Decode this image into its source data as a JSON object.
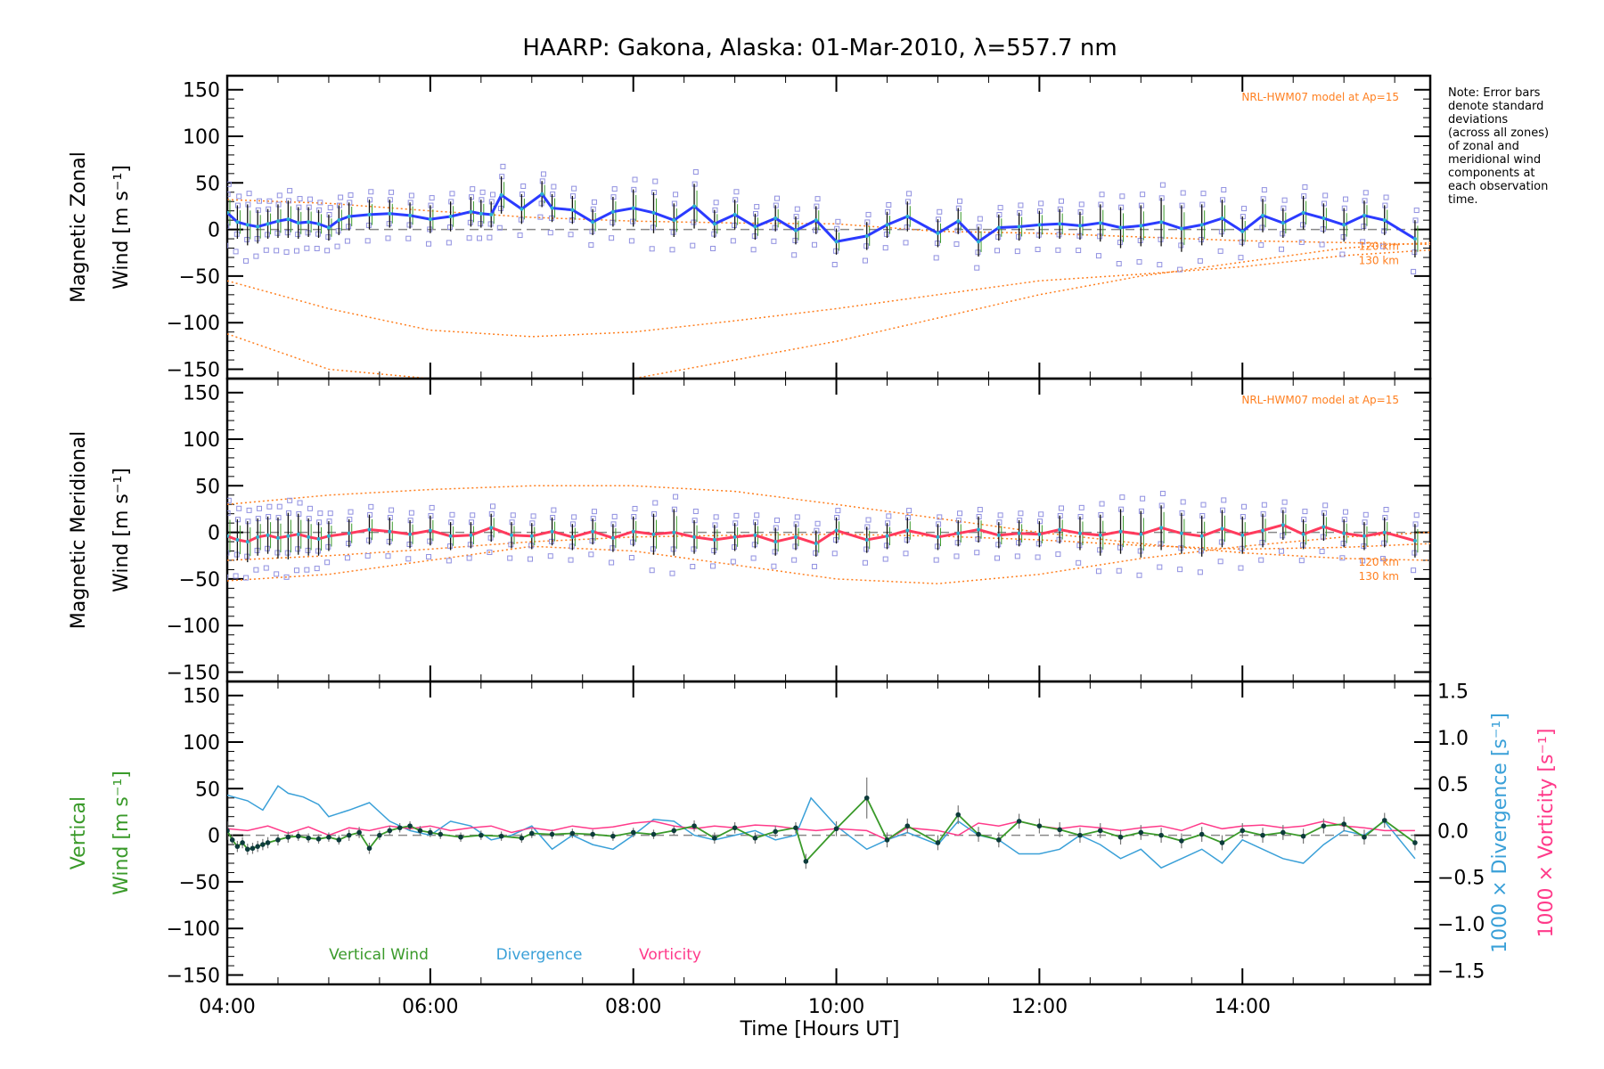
{
  "title": "HAARP: Gakona,  Alaska: 01-Mar-2010, λ=557.7 nm",
  "note": [
    "Note: Error bars",
    "denote standard",
    "deviations",
    "(across all zones)",
    "of zonal and",
    "meridional wind",
    "components at",
    "each observation",
    "time."
  ],
  "x_label": "Time [Hours UT]",
  "x_ticks": [
    "04:00",
    "06:00",
    "08:00",
    "10:00",
    "12:00",
    "14:00"
  ],
  "colors": {
    "zonal": "#2b3bff",
    "meridional": "#ff3a5c",
    "vertical": "#3a9a2a",
    "divergence": "#3aa0d8",
    "vorticity": "#ff3a8a",
    "model": "#ff7f1f",
    "zone": "#9090e0"
  },
  "chart_data": [
    {
      "type": "line",
      "ylabel_line1": "Magnetic Zonal",
      "ylabel_line2": "Wind [m s⁻¹]",
      "ylim": [
        -160,
        165
      ],
      "y_ticks": [
        150,
        100,
        50,
        0,
        -50,
        -100,
        -150
      ],
      "model_label": "NRL-HWM07 model at Ap=15",
      "model_altitudes": [
        "120 km",
        "130 km"
      ],
      "x": [
        4.0,
        4.1,
        4.2,
        4.3,
        4.4,
        4.5,
        4.6,
        4.7,
        4.8,
        4.9,
        5.0,
        5.1,
        5.2,
        5.4,
        5.6,
        5.8,
        6.0,
        6.2,
        6.4,
        6.5,
        6.6,
        6.7,
        6.9,
        7.1,
        7.2,
        7.4,
        7.6,
        7.8,
        8.0,
        8.2,
        8.4,
        8.6,
        8.8,
        9.0,
        9.2,
        9.4,
        9.6,
        9.8,
        10.0,
        10.3,
        10.5,
        10.7,
        11.0,
        11.2,
        11.4,
        11.6,
        11.8,
        12.0,
        12.2,
        12.4,
        12.6,
        12.8,
        13.0,
        13.2,
        13.4,
        13.6,
        13.8,
        14.0,
        14.2,
        14.4,
        14.6,
        14.8,
        15.0,
        15.2,
        15.4,
        15.7
      ],
      "values": [
        18,
        8,
        5,
        3,
        6,
        9,
        11,
        7,
        8,
        6,
        2,
        10,
        14,
        16,
        17,
        15,
        11,
        14,
        19,
        17,
        16,
        37,
        22,
        38,
        23,
        21,
        8,
        19,
        23,
        18,
        10,
        25,
        6,
        16,
        3,
        12,
        -1,
        10,
        -13,
        -7,
        5,
        14,
        -4,
        9,
        -13,
        2,
        3,
        5,
        6,
        4,
        7,
        2,
        4,
        8,
        1,
        5,
        12,
        -2,
        15,
        7,
        18,
        12,
        5,
        15,
        10,
        -10
      ],
      "error_bars": [
        20,
        18,
        22,
        18,
        16,
        18,
        20,
        17,
        16,
        15,
        14,
        16,
        15,
        16,
        15,
        14,
        15,
        16,
        16,
        15,
        14,
        20,
        16,
        14,
        15,
        15,
        14,
        16,
        20,
        22,
        18,
        24,
        15,
        16,
        14,
        14,
        15,
        15,
        14,
        15,
        14,
        16,
        15,
        14,
        16,
        14,
        15,
        15,
        16,
        15,
        20,
        22,
        22,
        26,
        25,
        22,
        20,
        16,
        18,
        16,
        18,
        16,
        18,
        16,
        16,
        20
      ],
      "model_120km": {
        "x": [
          4.0,
          5.0,
          6.0,
          7.0,
          8.0,
          9.0,
          10.0,
          11.0,
          12.0,
          13.0,
          14.0,
          15.0,
          15.85
        ],
        "values": [
          32,
          28,
          20,
          13,
          9,
          7,
          6,
          -2,
          -4,
          -8,
          -12,
          -14,
          -16
        ]
      },
      "model_130km": {
        "x": [
          4.0,
          5.0,
          6.0,
          7.0,
          8.0,
          9.0,
          10.0,
          11.0,
          12.0,
          13.0,
          14.0,
          15.0,
          15.85
        ],
        "values": [
          -55,
          -85,
          -108,
          -115,
          -110,
          -98,
          -85,
          -70,
          -55,
          -48,
          -40,
          -28,
          -22
        ]
      },
      "model_extra": {
        "x": [
          4.0,
          5.0,
          6.0,
          7.0,
          8.0,
          9.0,
          10.0,
          11.0,
          12.0,
          13.0,
          14.0,
          15.0,
          15.85
        ],
        "values": [
          -112,
          -150,
          -172,
          -175,
          -160,
          -140,
          -120,
          -95,
          -70,
          -50,
          -35,
          -20,
          -14
        ]
      }
    },
    {
      "type": "line",
      "ylabel_line1": "Magnetic Meridional",
      "ylabel_line2": "Wind [m s⁻¹]",
      "ylim": [
        -160,
        165
      ],
      "y_ticks": [
        150,
        100,
        50,
        0,
        -50,
        -100,
        -150
      ],
      "model_label": "NRL-HWM07 model at Ap=15",
      "model_altitudes": [
        "120 km",
        "130 km"
      ],
      "x": [
        4.0,
        4.1,
        4.2,
        4.3,
        4.4,
        4.5,
        4.6,
        4.7,
        4.8,
        4.9,
        5.0,
        5.2,
        5.4,
        5.6,
        5.8,
        6.0,
        6.2,
        6.4,
        6.6,
        6.8,
        7.0,
        7.2,
        7.4,
        7.6,
        7.8,
        8.0,
        8.2,
        8.4,
        8.6,
        8.8,
        9.0,
        9.2,
        9.4,
        9.6,
        9.8,
        10.0,
        10.3,
        10.5,
        10.7,
        11.0,
        11.2,
        11.4,
        11.6,
        11.8,
        12.0,
        12.2,
        12.4,
        12.6,
        12.8,
        13.0,
        13.2,
        13.4,
        13.6,
        13.8,
        14.0,
        14.2,
        14.4,
        14.6,
        14.8,
        15.0,
        15.2,
        15.4,
        15.7
      ],
      "values": [
        -4,
        -8,
        -10,
        -5,
        -3,
        -6,
        -4,
        -2,
        -5,
        -7,
        -4,
        -1,
        3,
        1,
        -2,
        2,
        -4,
        -3,
        5,
        -3,
        -4,
        1,
        -5,
        1,
        -6,
        1,
        -2,
        0,
        -5,
        -8,
        -5,
        -3,
        -10,
        -5,
        -12,
        2,
        -8,
        -4,
        2,
        -5,
        -1,
        3,
        -3,
        -1,
        -2,
        3,
        -1,
        -3,
        1,
        -2,
        5,
        -1,
        -4,
        4,
        -3,
        2,
        8,
        -2,
        6,
        -1,
        -4,
        0,
        -9
      ],
      "error_bars": [
        25,
        22,
        22,
        20,
        20,
        22,
        25,
        22,
        20,
        18,
        16,
        15,
        16,
        15,
        15,
        16,
        15,
        14,
        15,
        14,
        14,
        15,
        14,
        14,
        15,
        16,
        22,
        25,
        18,
        16,
        15,
        14,
        15,
        14,
        14,
        14,
        14,
        14,
        14,
        14,
        14,
        14,
        14,
        14,
        14,
        15,
        18,
        22,
        24,
        25,
        24,
        22,
        22,
        20,
        20,
        18,
        16,
        16,
        15,
        15,
        15,
        16,
        18
      ],
      "model_120km": {
        "x": [
          4.0,
          5.0,
          6.0,
          7.0,
          8.0,
          9.0,
          10.0,
          11.0,
          12.0,
          13.0,
          14.0,
          15.0,
          15.85
        ],
        "values": [
          30,
          40,
          46,
          50,
          50,
          44,
          30,
          15,
          0,
          -12,
          -22,
          -28,
          -30
        ]
      },
      "model_130km": {
        "x": [
          4.0,
          5.0,
          6.0,
          7.0,
          8.0,
          9.0,
          10.0,
          11.0,
          12.0,
          13.0,
          14.0,
          15.0,
          15.85
        ],
        "values": [
          -52,
          -45,
          -30,
          -15,
          -20,
          -35,
          -50,
          -55,
          -45,
          -28,
          -15,
          -5,
          0
        ]
      },
      "model_extra": {
        "x": [
          4.0,
          5.0,
          6.0,
          7.0,
          8.0,
          9.0,
          10.0,
          11.0,
          12.0,
          13.0,
          14.0,
          15.0,
          15.85
        ],
        "values": [
          -30,
          -25,
          -18,
          -10,
          -5,
          -3,
          -2,
          -4,
          -8,
          -14,
          -18,
          -16,
          -12
        ]
      }
    },
    {
      "type": "line",
      "ylabel_line1": "Vertical",
      "ylabel_line2": "Wind [m s⁻¹]",
      "ylim": [
        -160,
        165
      ],
      "y_ticks": [
        150,
        100,
        50,
        0,
        -50,
        -100,
        -150
      ],
      "y2_ticks": [
        1.5,
        1.0,
        0.5,
        0.0,
        -0.5,
        -1.0,
        -1.5
      ],
      "y2_label_divergence": "1000 × Divergence [s⁻¹]",
      "y2_label_vorticity": "1000 × Vorticity [s⁻¹]",
      "legend": [
        "Vertical Wind",
        "Divergence",
        "Vorticity"
      ],
      "vertical": {
        "x": [
          4.0,
          4.05,
          4.1,
          4.15,
          4.2,
          4.25,
          4.3,
          4.35,
          4.4,
          4.5,
          4.6,
          4.7,
          4.8,
          4.9,
          5.0,
          5.1,
          5.2,
          5.3,
          5.4,
          5.5,
          5.6,
          5.7,
          5.8,
          5.9,
          6.0,
          6.1,
          6.3,
          6.5,
          6.7,
          6.9,
          7.0,
          7.2,
          7.4,
          7.6,
          7.8,
          8.0,
          8.2,
          8.4,
          8.6,
          8.8,
          9.0,
          9.2,
          9.4,
          9.6,
          9.7,
          10.0,
          10.3,
          10.5,
          10.7,
          11.0,
          11.2,
          11.4,
          11.6,
          11.8,
          12.0,
          12.2,
          12.4,
          12.6,
          12.8,
          13.0,
          13.2,
          13.4,
          13.6,
          13.8,
          14.0,
          14.2,
          14.4,
          14.6,
          14.8,
          15.0,
          15.2,
          15.4,
          15.7
        ],
        "values": [
          5,
          -5,
          -12,
          -8,
          -15,
          -14,
          -12,
          -10,
          -8,
          -5,
          -2,
          -1,
          -3,
          -4,
          -2,
          -5,
          0,
          3,
          -14,
          0,
          5,
          8,
          10,
          5,
          3,
          1,
          -2,
          0,
          -1,
          -3,
          2,
          1,
          2,
          1,
          -1,
          3,
          1,
          5,
          10,
          -3,
          8,
          -3,
          4,
          8,
          -28,
          7,
          40,
          -5,
          10,
          -8,
          22,
          1,
          -5,
          15,
          10,
          6,
          0,
          5,
          -2,
          3,
          0,
          -6,
          1,
          -8,
          5,
          0,
          3,
          -1,
          10,
          12,
          -2,
          16,
          -8
        ],
        "error_bars": [
          10,
          6,
          6,
          6,
          6,
          6,
          6,
          6,
          6,
          6,
          6,
          5,
          5,
          5,
          5,
          5,
          6,
          6,
          6,
          5,
          5,
          5,
          5,
          5,
          5,
          5,
          5,
          5,
          5,
          5,
          5,
          5,
          5,
          5,
          5,
          5,
          5,
          5,
          6,
          6,
          6,
          6,
          6,
          6,
          8,
          8,
          22,
          8,
          8,
          8,
          10,
          8,
          8,
          8,
          8,
          8,
          8,
          8,
          8,
          8,
          8,
          8,
          8,
          8,
          8,
          8,
          8,
          8,
          8,
          8,
          8,
          8,
          8
        ]
      },
      "divergence": {
        "x": [
          4.0,
          4.1,
          4.2,
          4.35,
          4.5,
          4.6,
          4.75,
          4.9,
          5.0,
          5.2,
          5.4,
          5.6,
          5.8,
          6.0,
          6.2,
          6.4,
          6.6,
          6.8,
          7.0,
          7.2,
          7.4,
          7.6,
          7.8,
          8.0,
          8.2,
          8.4,
          8.6,
          8.8,
          9.0,
          9.2,
          9.4,
          9.6,
          9.75,
          10.0,
          10.3,
          10.5,
          10.7,
          11.0,
          11.2,
          11.4,
          11.6,
          11.8,
          12.0,
          12.2,
          12.4,
          12.6,
          12.8,
          13.0,
          13.2,
          13.4,
          13.6,
          13.8,
          14.0,
          14.2,
          14.4,
          14.6,
          14.8,
          15.0,
          15.2,
          15.4,
          15.7
        ],
        "values": [
          0.38,
          0.35,
          0.32,
          0.22,
          0.48,
          0.4,
          0.36,
          0.28,
          0.15,
          0.22,
          0.3,
          0.1,
          0.0,
          -0.05,
          0.1,
          0.05,
          -0.1,
          -0.05,
          0.05,
          -0.2,
          -0.05,
          -0.15,
          -0.2,
          -0.05,
          0.12,
          0.1,
          -0.05,
          -0.1,
          -0.05,
          0.0,
          -0.1,
          -0.05,
          0.35,
          0.05,
          -0.2,
          -0.1,
          -0.02,
          -0.15,
          0.1,
          -0.05,
          -0.1,
          -0.25,
          -0.25,
          -0.2,
          -0.05,
          -0.15,
          -0.3,
          -0.2,
          -0.4,
          -0.3,
          -0.2,
          -0.35,
          -0.1,
          -0.2,
          -0.3,
          -0.35,
          -0.15,
          0.0,
          -0.05,
          0.1,
          -0.3
        ]
      },
      "vorticity": {
        "x": [
          4.0,
          4.2,
          4.4,
          4.6,
          4.8,
          5.0,
          5.2,
          5.4,
          5.6,
          5.8,
          6.0,
          6.2,
          6.4,
          6.6,
          6.8,
          7.0,
          7.2,
          7.4,
          7.6,
          7.8,
          8.0,
          8.2,
          8.4,
          8.6,
          8.8,
          9.0,
          9.2,
          9.4,
          9.6,
          9.8,
          10.0,
          10.3,
          10.5,
          10.7,
          11.0,
          11.2,
          11.4,
          11.6,
          11.8,
          12.0,
          12.2,
          12.4,
          12.6,
          12.8,
          13.0,
          13.2,
          13.4,
          13.6,
          13.8,
          14.0,
          14.2,
          14.4,
          14.6,
          14.8,
          15.0,
          15.2,
          15.4,
          15.7
        ],
        "values": [
          0.02,
          0.0,
          0.05,
          -0.03,
          0.04,
          -0.05,
          0.03,
          0.0,
          0.05,
          0.02,
          0.05,
          0.0,
          0.03,
          0.05,
          -0.02,
          0.03,
          0.0,
          0.05,
          0.02,
          0.04,
          0.08,
          0.1,
          0.05,
          0.02,
          0.05,
          0.03,
          0.06,
          0.05,
          0.02,
          0.0,
          0.02,
          0.0,
          -0.1,
          0.03,
          0.0,
          -0.05,
          0.08,
          0.05,
          0.1,
          0.05,
          0.02,
          0.05,
          0.03,
          0.0,
          0.03,
          0.05,
          0.0,
          0.08,
          0.02,
          0.05,
          0.06,
          0.03,
          0.05,
          0.1,
          0.05,
          0.03,
          0.0,
          0.0
        ]
      }
    }
  ]
}
